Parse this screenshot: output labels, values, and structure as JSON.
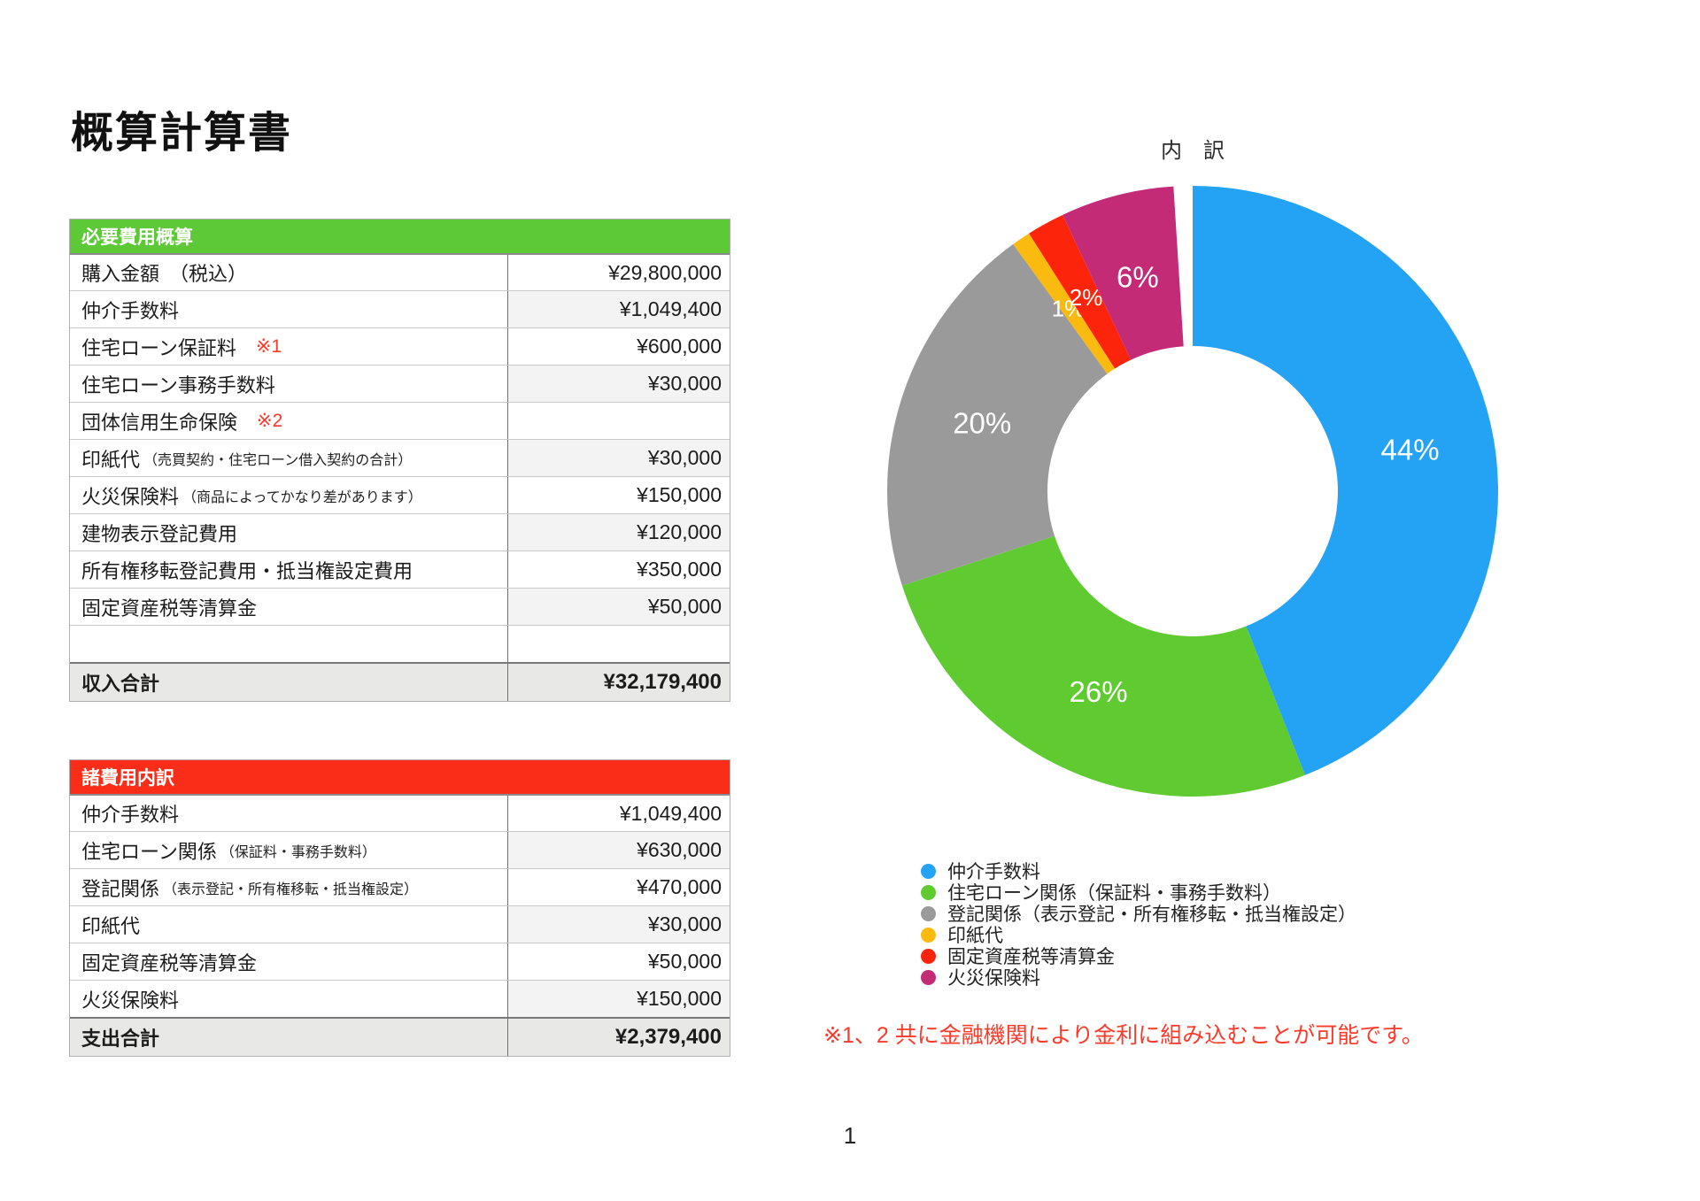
{
  "page": {
    "title": "概算計算書",
    "page_number": "1",
    "note": "※1、2 共に金融機関により金利に組み込むことが可能です。",
    "note_color": "#fb3a2a"
  },
  "tables": [
    {
      "name": "necessary-costs",
      "header": "必要費用概算",
      "header_bg": "#5dc937",
      "rows": [
        {
          "label": "購入金額　（税込）",
          "value": "¥29,800,000"
        },
        {
          "label": "仲介手数料",
          "value": "¥1,049,400"
        },
        {
          "label": "住宅ローン保証料",
          "mark": "※1",
          "value": "¥600,000"
        },
        {
          "label": "住宅ローン事務手数料",
          "value": "¥30,000"
        },
        {
          "label": "団体信用生命保険",
          "mark": "※2",
          "value": ""
        },
        {
          "label": "印紙代",
          "sub": "（売買契約・住宅ローン借入契約の合計）",
          "value": "¥30,000"
        },
        {
          "label": "火災保険料",
          "sub": "（商品によってかなり差があります）",
          "value": "¥150,000"
        },
        {
          "label": "建物表示登記費用",
          "value": "¥120,000"
        },
        {
          "label": "所有権移転登記費用・抵当権設定費用",
          "value": "¥350,000"
        },
        {
          "label": "固定資産税等清算金",
          "value": "¥50,000"
        },
        {
          "label": "",
          "value": ""
        }
      ],
      "total": {
        "label": "収入合計",
        "value": "¥32,179,400"
      }
    },
    {
      "name": "fees-breakdown",
      "header": "諸費用内訳",
      "header_bg": "#fa2d19",
      "rows": [
        {
          "label": "仲介手数料",
          "value": "¥1,049,400"
        },
        {
          "label": "住宅ローン関係",
          "sub": "（保証料・事務手数料）",
          "value": "¥630,000"
        },
        {
          "label": "登記関係",
          "sub": "（表示登記・所有権移転・抵当権設定）",
          "value": "¥470,000"
        },
        {
          "label": "印紙代",
          "value": "¥30,000"
        },
        {
          "label": "固定資産税等清算金",
          "value": "¥50,000"
        },
        {
          "label": "火災保険料",
          "value": "¥150,000"
        }
      ],
      "total": {
        "label": "支出合計",
        "value": "¥2,379,400"
      }
    }
  ],
  "chart_data": {
    "type": "pie",
    "donut": true,
    "title": "内　訳",
    "legend_position": "bottom-left",
    "start_angle_deg": 0,
    "direction": "clockwise",
    "segments": [
      {
        "label": "仲介手数料",
        "pct": 44,
        "color": "#24a2f4"
      },
      {
        "label": "住宅ローン関係（保証料・事務手数料）",
        "pct": 26,
        "color": "#5fcb30"
      },
      {
        "label": "登記関係（表示登記・所有権移転・抵当権設定）",
        "pct": 20,
        "color": "#9a9a9a"
      },
      {
        "label": "印紙代",
        "pct": 1,
        "color": "#fbba0f"
      },
      {
        "label": "固定資産税等清算金",
        "pct": 2,
        "color": "#fc250b"
      },
      {
        "label": "火災保険料",
        "pct": 6,
        "color": "#c42b77"
      }
    ]
  }
}
